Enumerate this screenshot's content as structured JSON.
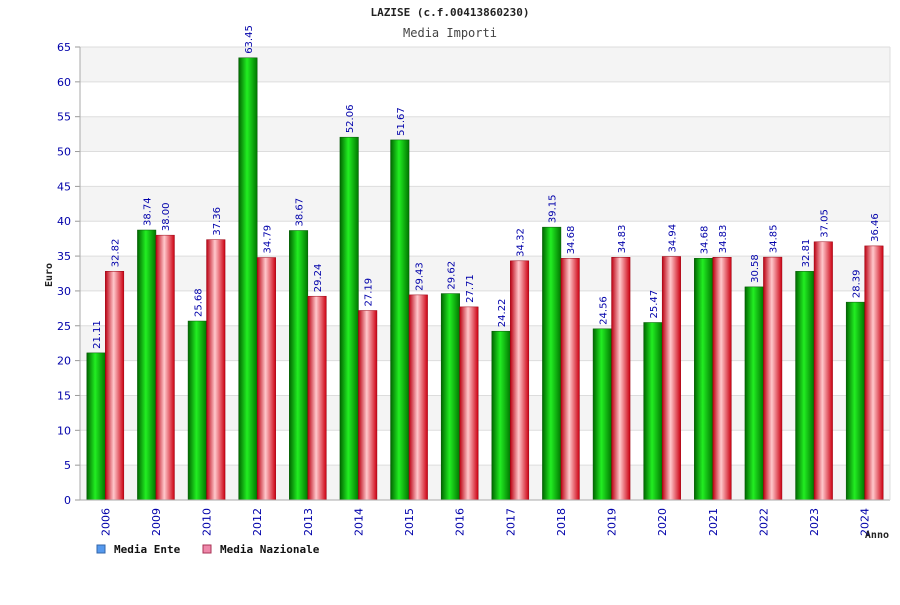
{
  "chart_data": {
    "type": "bar",
    "title": "LAZISE (c.f.00413860230)",
    "subtitle": "Media Importi",
    "xlabel": "Anno",
    "ylabel": "Euro",
    "ylim": [
      0,
      65
    ],
    "yticks": [
      0,
      5,
      10,
      15,
      20,
      25,
      30,
      35,
      40,
      45,
      50,
      55,
      60,
      65
    ],
    "grid": true,
    "legend_position": "bottom-left",
    "categories": [
      "2006",
      "2009",
      "2010",
      "2012",
      "2013",
      "2014",
      "2015",
      "2016",
      "2017",
      "2018",
      "2019",
      "2020",
      "2021",
      "2022",
      "2023",
      "2024"
    ],
    "series": [
      {
        "name": "Media Ente",
        "color": "#00bb00",
        "legend_color": "#5599ee",
        "values": [
          21.11,
          38.74,
          25.68,
          63.45,
          38.67,
          52.06,
          51.67,
          29.62,
          24.22,
          39.15,
          24.56,
          25.47,
          34.68,
          30.58,
          32.81,
          28.39
        ],
        "labels": [
          "21.11",
          "38.74",
          "25.68",
          "63.45",
          "38.67",
          "52.06",
          "51.67",
          "29.62",
          "24.22",
          "39.15",
          "24.56",
          "25.47",
          "34.68",
          "30.58",
          "32.81",
          "28.39"
        ]
      },
      {
        "name": "Media Nazionale",
        "color": "#ee2233",
        "legend_color": "#ee88aa",
        "values": [
          32.82,
          38.0,
          37.36,
          34.79,
          29.24,
          27.19,
          29.43,
          27.71,
          34.32,
          34.68,
          34.83,
          34.94,
          34.83,
          34.85,
          37.05,
          36.46
        ],
        "labels": [
          "32.82",
          "38.00",
          "37.36",
          "34.79",
          "29.24",
          "27.19",
          "29.43",
          "27.71",
          "34.32",
          "34.68",
          "34.83",
          "34.94",
          "34.83",
          "34.85",
          "37.05",
          "36.46"
        ]
      }
    ]
  }
}
